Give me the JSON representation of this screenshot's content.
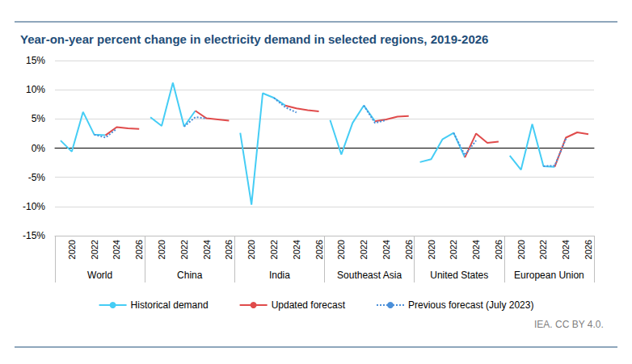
{
  "chart_data": {
    "type": "line",
    "title": "Year-on-year percent change in electricity demand in selected regions, 2019-2026",
    "source": "IEA. CC BY 4.0.",
    "groups": [
      {
        "label": "World",
        "categories": [
          null,
          "2020",
          null,
          "2022",
          null,
          "2024",
          null,
          "2026"
        ]
      },
      {
        "label": "China",
        "categories": [
          null,
          "2020",
          null,
          "2022",
          null,
          "2024",
          null,
          "2026"
        ]
      },
      {
        "label": "India",
        "categories": [
          null,
          "2020",
          null,
          "2022",
          null,
          "2024",
          null,
          "2026"
        ]
      },
      {
        "label": "Southeast Asia",
        "categories": [
          null,
          "2020",
          null,
          "2022",
          null,
          "2024",
          null,
          "2026"
        ]
      },
      {
        "label": "United States",
        "categories": [
          null,
          "2020",
          null,
          "2022",
          null,
          "2024",
          null,
          "2026"
        ]
      },
      {
        "label": "European Union",
        "categories": [
          null,
          "2020",
          null,
          "2022",
          null,
          "2024",
          null,
          "2026"
        ]
      }
    ],
    "series": [
      {
        "name": "Historical demand",
        "color": "#45cdf5",
        "line_style": "solid",
        "values": [
          1.3,
          -0.6,
          6.2,
          2.3,
          2.2,
          null,
          null,
          null,
          5.3,
          3.8,
          11.2,
          3.7,
          6.4,
          null,
          null,
          null,
          2.6,
          -9.7,
          9.4,
          8.6,
          7.3,
          null,
          null,
          null,
          4.8,
          -1.1,
          4.3,
          7.3,
          4.6,
          null,
          null,
          null,
          -2.4,
          -1.9,
          1.5,
          2.6,
          -1.6,
          null,
          null,
          null,
          -1.3,
          -3.7,
          4.1,
          -3.1,
          -3.2,
          null,
          null,
          null
        ]
      },
      {
        "name": "Updated forecast",
        "color": "#e04b4b",
        "line_style": "solid",
        "values": [
          null,
          null,
          null,
          null,
          2.2,
          3.6,
          3.4,
          3.3,
          null,
          null,
          null,
          null,
          6.4,
          5.1,
          4.9,
          4.7,
          null,
          null,
          null,
          null,
          7.3,
          6.8,
          6.5,
          6.3,
          null,
          null,
          null,
          null,
          4.6,
          4.9,
          5.4,
          5.5,
          null,
          null,
          null,
          null,
          -1.6,
          2.5,
          0.9,
          1.1,
          null,
          null,
          null,
          null,
          -3.2,
          1.8,
          2.7,
          2.4
        ]
      },
      {
        "name": "Previous forecast (July 2023)",
        "color": "#4a8fd9",
        "line_style": "dotted",
        "values": [
          null,
          null,
          null,
          2.3,
          1.8,
          3.3,
          null,
          null,
          null,
          null,
          null,
          3.7,
          5.3,
          5.1,
          null,
          null,
          null,
          null,
          null,
          8.6,
          7.0,
          6.1,
          null,
          null,
          null,
          null,
          null,
          7.3,
          4.3,
          4.8,
          null,
          null,
          null,
          null,
          null,
          2.6,
          -1.2,
          1.3,
          null,
          null,
          null,
          null,
          null,
          -3.1,
          -3.0,
          1.6,
          null,
          null
        ]
      }
    ],
    "ylim": [
      -15,
      15
    ],
    "yticks": [
      {
        "value": -15,
        "label": "-15%"
      },
      {
        "value": -10,
        "label": "-10%"
      },
      {
        "value": -5,
        "label": "-5%"
      },
      {
        "value": 0,
        "label": "0%"
      },
      {
        "value": 5,
        "label": "5%"
      },
      {
        "value": 10,
        "label": "10%"
      },
      {
        "value": 15,
        "label": "15%"
      }
    ],
    "grid": true,
    "legend": "bottom"
  }
}
